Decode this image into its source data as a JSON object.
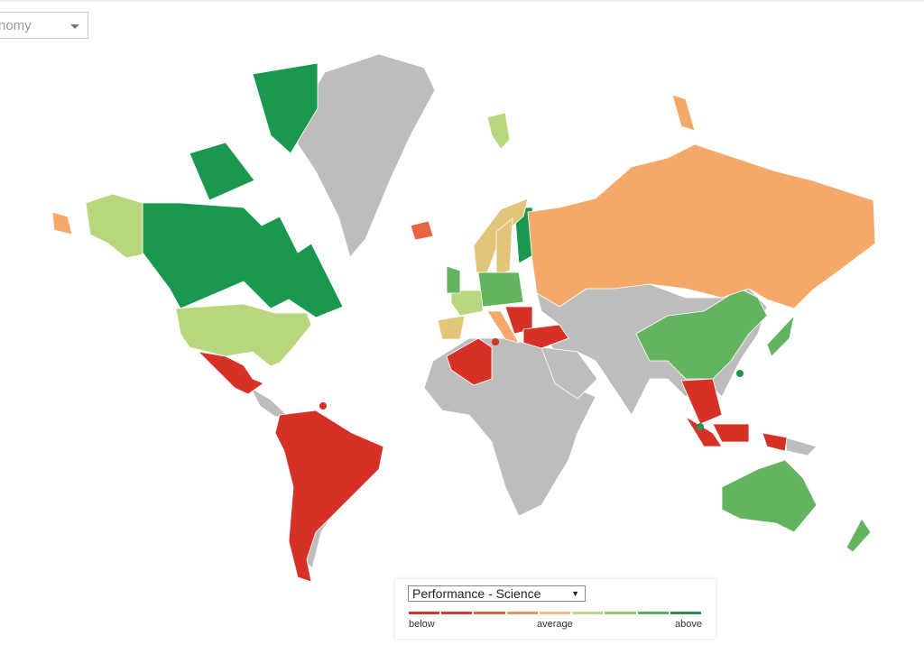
{
  "top_select": {
    "value": "nomy"
  },
  "legend": {
    "selected": "Performance - Science",
    "below_label": "below",
    "average_label": "average",
    "above_label": "above",
    "scale_colors": [
      "#c23b33",
      "#c5403a",
      "#d06a48",
      "#e3975f",
      "#efbd7d",
      "#bcd88a",
      "#8ec76e",
      "#5fae5f",
      "#2e8b57"
    ]
  },
  "map_colors": {
    "below": "#d73027",
    "slightly_below": "#f4a96a",
    "slightly_above": "#b8d77c",
    "above": "#63b35f",
    "far_above": "#1a9850",
    "no_data": "#bdbdbd"
  }
}
